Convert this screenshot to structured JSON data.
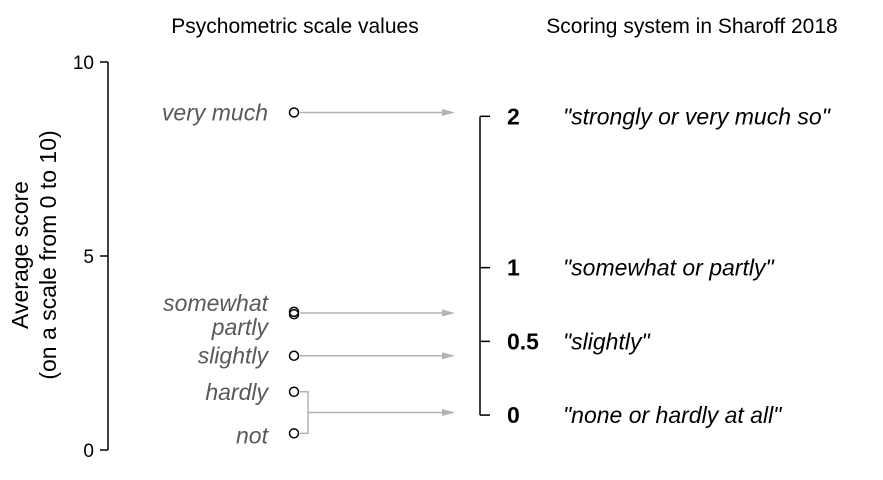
{
  "chart_data": {
    "type": "scatter",
    "titles": {
      "left": "Psychometric scale values",
      "right": "Scoring system in Sharoff 2018"
    },
    "ylabel_line1": "Average score",
    "ylabel_line2": "(on a scale from 0 to 10)",
    "ylim": [
      0,
      10
    ],
    "yticks": [
      {
        "value": 0,
        "label": "0"
      },
      {
        "value": 5,
        "label": "5"
      },
      {
        "value": 10,
        "label": "10"
      }
    ],
    "scale_values": [
      {
        "label": "very much",
        "y": 8.7
      },
      {
        "label": "somewhat",
        "y": 3.56
      },
      {
        "label": "partly",
        "y": 3.5
      },
      {
        "label": "slightly",
        "y": 2.43
      },
      {
        "label": "hardly",
        "y": 1.5
      },
      {
        "label": "not",
        "y": 0.43
      }
    ],
    "scoring": [
      {
        "score": "2",
        "description": "\"strongly or very much so\"",
        "y": 8.6
      },
      {
        "score": "1",
        "description": "\"somewhat or partly\"",
        "y": 4.7
      },
      {
        "score": "0.5",
        "description": "\"slightly\"",
        "y": 2.8
      },
      {
        "score": "0",
        "description": "\"none or hardly at all\"",
        "y": 0.9
      }
    ],
    "mappings": [
      {
        "from": [
          "very much"
        ],
        "to": "2"
      },
      {
        "from": [
          "somewhat",
          "partly"
        ],
        "to": "1"
      },
      {
        "from": [
          "slightly"
        ],
        "to": "0.5"
      },
      {
        "from": [
          "hardly",
          "not"
        ],
        "to": "0"
      }
    ],
    "colors": {
      "arrow": "#b3b3b3",
      "scale_label": "#595959",
      "axis": "#000000"
    }
  }
}
